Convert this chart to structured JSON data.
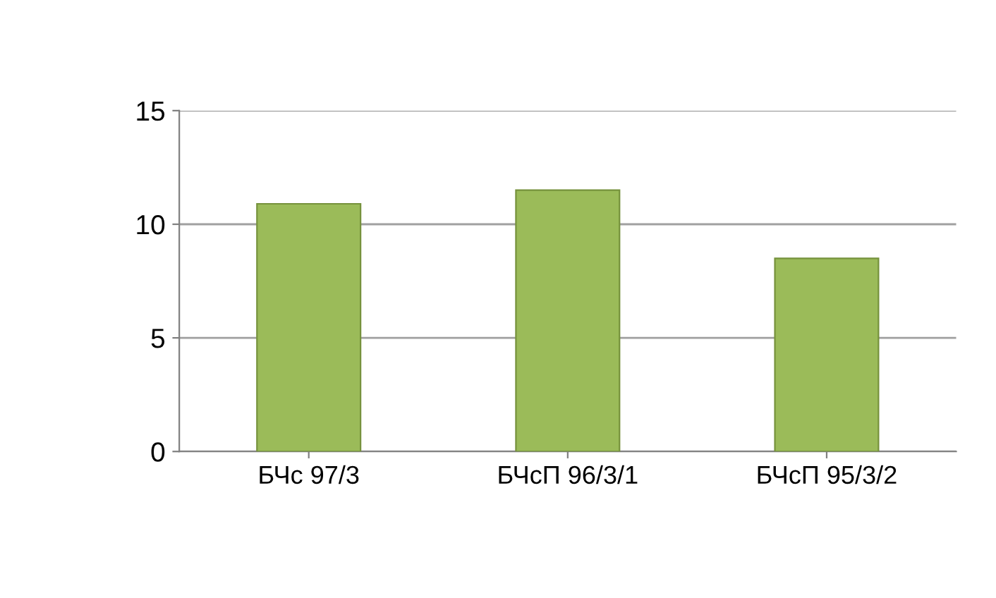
{
  "chart_data": {
    "type": "bar",
    "categories": [
      "БЧс 97/3",
      "БЧсП 96/3/1",
      "БЧсП 95/3/2"
    ],
    "values": [
      10.9,
      11.5,
      8.5
    ],
    "color": "#9bbb59",
    "ylim": [
      0,
      15
    ],
    "yticks": [
      0,
      5,
      10,
      15
    ],
    "grid": "y"
  }
}
